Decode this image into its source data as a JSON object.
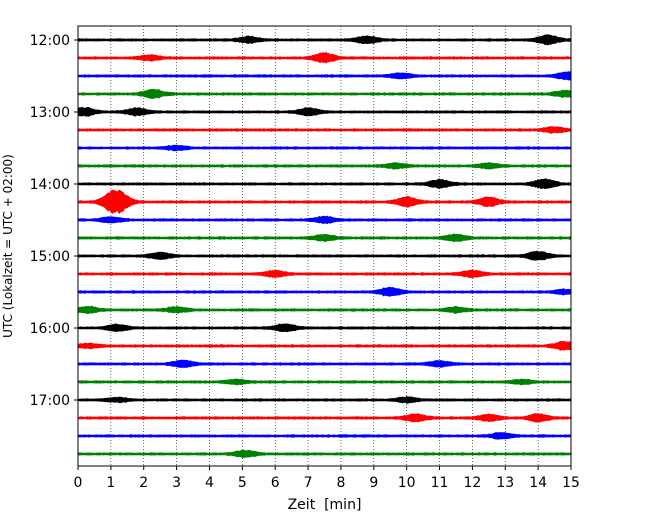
{
  "chart_data": {
    "type": "helicorder",
    "xlabel": "Zeit  [min]",
    "ylabel": "UTC (Lokalzeit = UTC + 02:00)",
    "xlim": [
      0,
      15
    ],
    "x_ticks": [
      "0",
      "1",
      "2",
      "3",
      "4",
      "5",
      "6",
      "7",
      "8",
      "9",
      "10",
      "11",
      "12",
      "13",
      "14",
      "15"
    ],
    "grid_vertical": true,
    "grid_style": "dotted",
    "line_minutes": 15,
    "y_ticks": [
      {
        "label": "12:00",
        "row": 0
      },
      {
        "label": "13:00",
        "row": 4
      },
      {
        "label": "14:00",
        "row": 8
      },
      {
        "label": "15:00",
        "row": 12
      },
      {
        "label": "16:00",
        "row": 16
      },
      {
        "label": "17:00",
        "row": 20
      }
    ],
    "colors": [
      "#000000",
      "#ff0000",
      "#0000ff",
      "#008000"
    ],
    "traces": [
      {
        "start": "12:00",
        "color": "#000000",
        "events": [
          {
            "t": 5.2,
            "a": 0.6
          },
          {
            "t": 8.8,
            "a": 0.7
          },
          {
            "t": 14.3,
            "a": 0.9
          }
        ]
      },
      {
        "start": "12:15",
        "color": "#ff0000",
        "events": [
          {
            "t": 2.2,
            "a": 0.5
          },
          {
            "t": 7.5,
            "a": 0.9
          }
        ]
      },
      {
        "start": "12:30",
        "color": "#0000ff",
        "events": [
          {
            "t": 9.8,
            "a": 0.5
          },
          {
            "t": 14.9,
            "a": 0.7
          }
        ]
      },
      {
        "start": "12:45",
        "color": "#008000",
        "events": [
          {
            "t": 2.3,
            "a": 0.8
          },
          {
            "t": 14.8,
            "a": 0.6
          }
        ]
      },
      {
        "start": "13:00",
        "color": "#000000",
        "events": [
          {
            "t": 0.2,
            "a": 0.8
          },
          {
            "t": 1.8,
            "a": 0.7
          },
          {
            "t": 7.0,
            "a": 0.7
          }
        ]
      },
      {
        "start": "13:15",
        "color": "#ff0000",
        "events": [
          {
            "t": 14.5,
            "a": 0.5
          }
        ]
      },
      {
        "start": "13:30",
        "color": "#0000ff",
        "events": [
          {
            "t": 3.0,
            "a": 0.4
          }
        ]
      },
      {
        "start": "13:45",
        "color": "#008000",
        "events": [
          {
            "t": 9.7,
            "a": 0.5
          },
          {
            "t": 12.5,
            "a": 0.5
          }
        ]
      },
      {
        "start": "14:00",
        "color": "#000000",
        "events": [
          {
            "t": 11.0,
            "a": 0.8
          },
          {
            "t": 14.2,
            "a": 0.9
          }
        ]
      },
      {
        "start": "14:15",
        "color": "#ff0000",
        "events": [
          {
            "t": 1.05,
            "a": 1.6
          },
          {
            "t": 1.3,
            "a": 1.1
          },
          {
            "t": 10.0,
            "a": 0.9
          },
          {
            "t": 12.5,
            "a": 0.9
          }
        ]
      },
      {
        "start": "14:30",
        "color": "#0000ff",
        "events": [
          {
            "t": 1.0,
            "a": 0.5
          },
          {
            "t": 7.5,
            "a": 0.6
          }
        ]
      },
      {
        "start": "14:45",
        "color": "#008000",
        "events": [
          {
            "t": 7.5,
            "a": 0.6
          },
          {
            "t": 11.5,
            "a": 0.6
          }
        ]
      },
      {
        "start": "15:00",
        "color": "#000000",
        "events": [
          {
            "t": 2.5,
            "a": 0.6
          },
          {
            "t": 14.0,
            "a": 0.8
          }
        ]
      },
      {
        "start": "15:15",
        "color": "#ff0000",
        "events": [
          {
            "t": 6.0,
            "a": 0.6
          },
          {
            "t": 12.0,
            "a": 0.6
          }
        ]
      },
      {
        "start": "15:30",
        "color": "#0000ff",
        "events": [
          {
            "t": 9.5,
            "a": 0.8
          },
          {
            "t": 14.8,
            "a": 0.4
          }
        ]
      },
      {
        "start": "15:45",
        "color": "#008000",
        "events": [
          {
            "t": 0.3,
            "a": 0.6
          },
          {
            "t": 3.0,
            "a": 0.5
          },
          {
            "t": 11.5,
            "a": 0.5
          }
        ]
      },
      {
        "start": "16:00",
        "color": "#000000",
        "events": [
          {
            "t": 1.2,
            "a": 0.6
          },
          {
            "t": 6.3,
            "a": 0.7
          }
        ]
      },
      {
        "start": "16:15",
        "color": "#ff0000",
        "events": [
          {
            "t": 0.3,
            "a": 0.4
          },
          {
            "t": 14.8,
            "a": 0.8
          }
        ]
      },
      {
        "start": "16:30",
        "color": "#0000ff",
        "events": [
          {
            "t": 3.2,
            "a": 0.6
          },
          {
            "t": 11.0,
            "a": 0.5
          }
        ]
      },
      {
        "start": "16:45",
        "color": "#008000",
        "events": [
          {
            "t": 4.8,
            "a": 0.4
          },
          {
            "t": 13.5,
            "a": 0.4
          }
        ]
      },
      {
        "start": "17:00",
        "color": "#000000",
        "events": [
          {
            "t": 1.2,
            "a": 0.4
          },
          {
            "t": 10.0,
            "a": 0.5
          }
        ]
      },
      {
        "start": "17:15",
        "color": "#ff0000",
        "events": [
          {
            "t": 10.3,
            "a": 0.7
          },
          {
            "t": 12.5,
            "a": 0.6
          },
          {
            "t": 14.0,
            "a": 0.7
          }
        ]
      },
      {
        "start": "17:30",
        "color": "#0000ff",
        "events": [
          {
            "t": 12.9,
            "a": 0.6
          }
        ]
      },
      {
        "start": "17:45",
        "color": "#008000",
        "events": [
          {
            "t": 5.1,
            "a": 0.6
          }
        ]
      }
    ]
  }
}
